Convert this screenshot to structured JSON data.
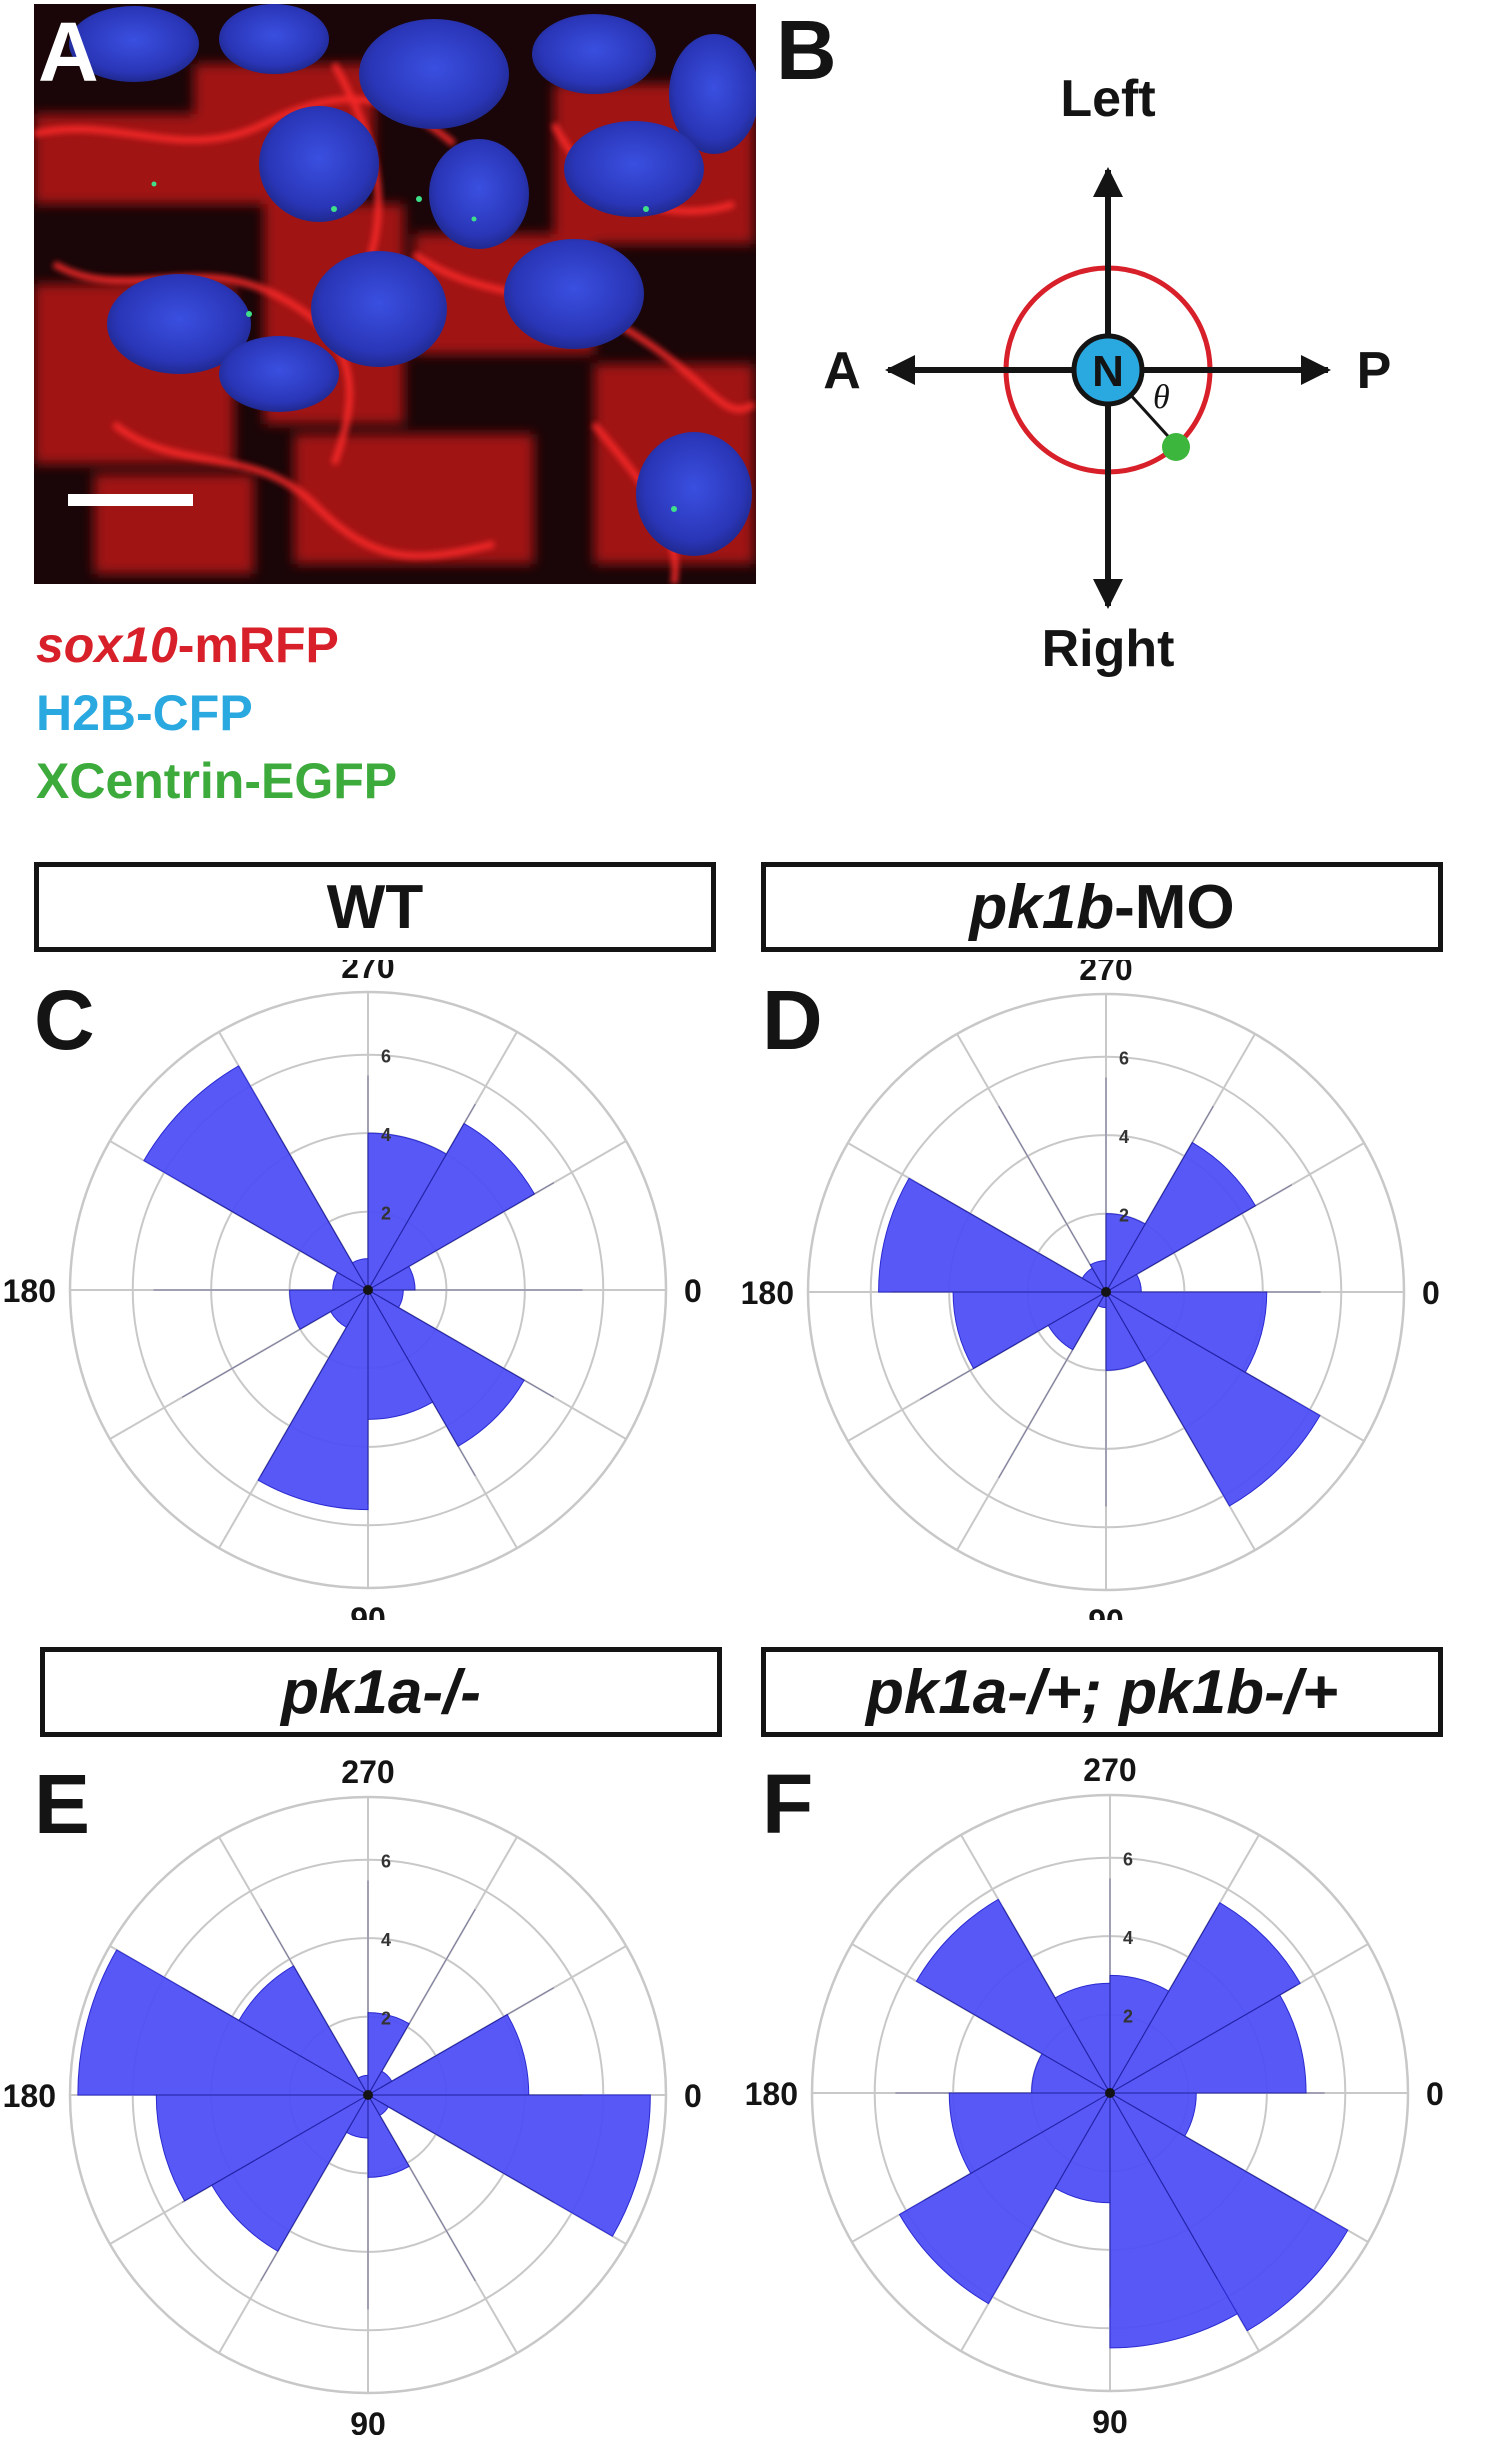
{
  "panel_a": {
    "letter": "A",
    "legend": [
      {
        "italic": "sox10",
        "text": "-mRFP",
        "color": "#d8202a"
      },
      {
        "italic": "",
        "text": "H2B-CFP",
        "color": "#2aa8e0"
      },
      {
        "italic": "",
        "text": "XCentrin-EGFP",
        "color": "#3cab3c"
      }
    ]
  },
  "panel_b": {
    "letter": "B",
    "left": "Left",
    "right": "Right",
    "anterior": "A",
    "posterior": "P",
    "nucleus": "N",
    "angle_symbol": "θ"
  },
  "colors": {
    "petal": "#4f4ff5",
    "petal_edge": "#2a2ad0",
    "grid": "#c8c8c8",
    "ink": "#141414"
  },
  "chart_data": [
    {
      "type": "polar-bar",
      "panel": "C",
      "title_parts": [
        {
          "text": "WT",
          "italic": false
        }
      ],
      "angle_labels": [
        "0",
        "90",
        "180",
        "270"
      ],
      "radial_ticks": [
        2,
        4,
        6
      ],
      "rmax": 7.6,
      "bin_width_deg": 30,
      "bins": [
        {
          "center": 15,
          "value": 0.9
        },
        {
          "center": 45,
          "value": 4.6
        },
        {
          "center": 75,
          "value": 3.3
        },
        {
          "center": 105,
          "value": 5.6
        },
        {
          "center": 135,
          "value": 1.1
        },
        {
          "center": 165,
          "value": 2.0
        },
        {
          "center": 195,
          "value": 0.9
        },
        {
          "center": 225,
          "value": 6.6
        },
        {
          "center": 255,
          "value": 0.8
        },
        {
          "center": 285,
          "value": 4.0
        },
        {
          "center": 315,
          "value": 4.9
        },
        {
          "center": 345,
          "value": 1.2
        }
      ]
    },
    {
      "type": "polar-bar",
      "panel": "D",
      "title_parts": [
        {
          "text": "pk1b",
          "italic": true
        },
        {
          "text": "-MO",
          "italic": false
        }
      ],
      "angle_labels": [
        "0",
        "90",
        "180",
        "270"
      ],
      "radial_ticks": [
        2,
        4,
        6
      ],
      "rmax": 7.6,
      "bin_width_deg": 30,
      "bins": [
        {
          "center": 15,
          "value": 4.1
        },
        {
          "center": 45,
          "value": 6.3
        },
        {
          "center": 75,
          "value": 2.0
        },
        {
          "center": 105,
          "value": 0.4
        },
        {
          "center": 135,
          "value": 1.7
        },
        {
          "center": 165,
          "value": 3.9
        },
        {
          "center": 195,
          "value": 5.8
        },
        {
          "center": 225,
          "value": 0.7
        },
        {
          "center": 255,
          "value": 0.8
        },
        {
          "center": 285,
          "value": 2.0
        },
        {
          "center": 315,
          "value": 4.4
        },
        {
          "center": 345,
          "value": 0.9
        }
      ]
    },
    {
      "type": "polar-bar",
      "panel": "E",
      "title_parts": [
        {
          "text": "pk1a-/-",
          "italic": true
        }
      ],
      "angle_labels": [
        "0",
        "90",
        "180",
        "270"
      ],
      "radial_ticks": [
        2,
        4,
        6
      ],
      "rmax": 7.6,
      "bin_width_deg": 30,
      "bins": [
        {
          "center": 15,
          "value": 7.2
        },
        {
          "center": 45,
          "value": 0.6
        },
        {
          "center": 75,
          "value": 2.1
        },
        {
          "center": 105,
          "value": 1.1
        },
        {
          "center": 135,
          "value": 4.6
        },
        {
          "center": 165,
          "value": 5.4
        },
        {
          "center": 195,
          "value": 7.4
        },
        {
          "center": 225,
          "value": 3.8
        },
        {
          "center": 255,
          "value": 0.5
        },
        {
          "center": 285,
          "value": 2.1
        },
        {
          "center": 315,
          "value": 0.7
        },
        {
          "center": 345,
          "value": 4.1
        }
      ]
    },
    {
      "type": "polar-bar",
      "panel": "F",
      "title_parts": [
        {
          "text": "pk1a-/+; pk1b-/+",
          "italic": true
        }
      ],
      "angle_labels": [
        "0",
        "90",
        "180",
        "270"
      ],
      "radial_ticks": [
        2,
        4,
        6
      ],
      "rmax": 7.6,
      "bin_width_deg": 30,
      "bins": [
        {
          "center": 15,
          "value": 2.2
        },
        {
          "center": 45,
          "value": 7.0
        },
        {
          "center": 75,
          "value": 6.5
        },
        {
          "center": 105,
          "value": 2.8
        },
        {
          "center": 135,
          "value": 6.2
        },
        {
          "center": 165,
          "value": 4.1
        },
        {
          "center": 195,
          "value": 2.0
        },
        {
          "center": 225,
          "value": 5.7
        },
        {
          "center": 255,
          "value": 2.8
        },
        {
          "center": 285,
          "value": 3.0
        },
        {
          "center": 315,
          "value": 5.6
        },
        {
          "center": 345,
          "value": 5.0
        }
      ]
    }
  ]
}
